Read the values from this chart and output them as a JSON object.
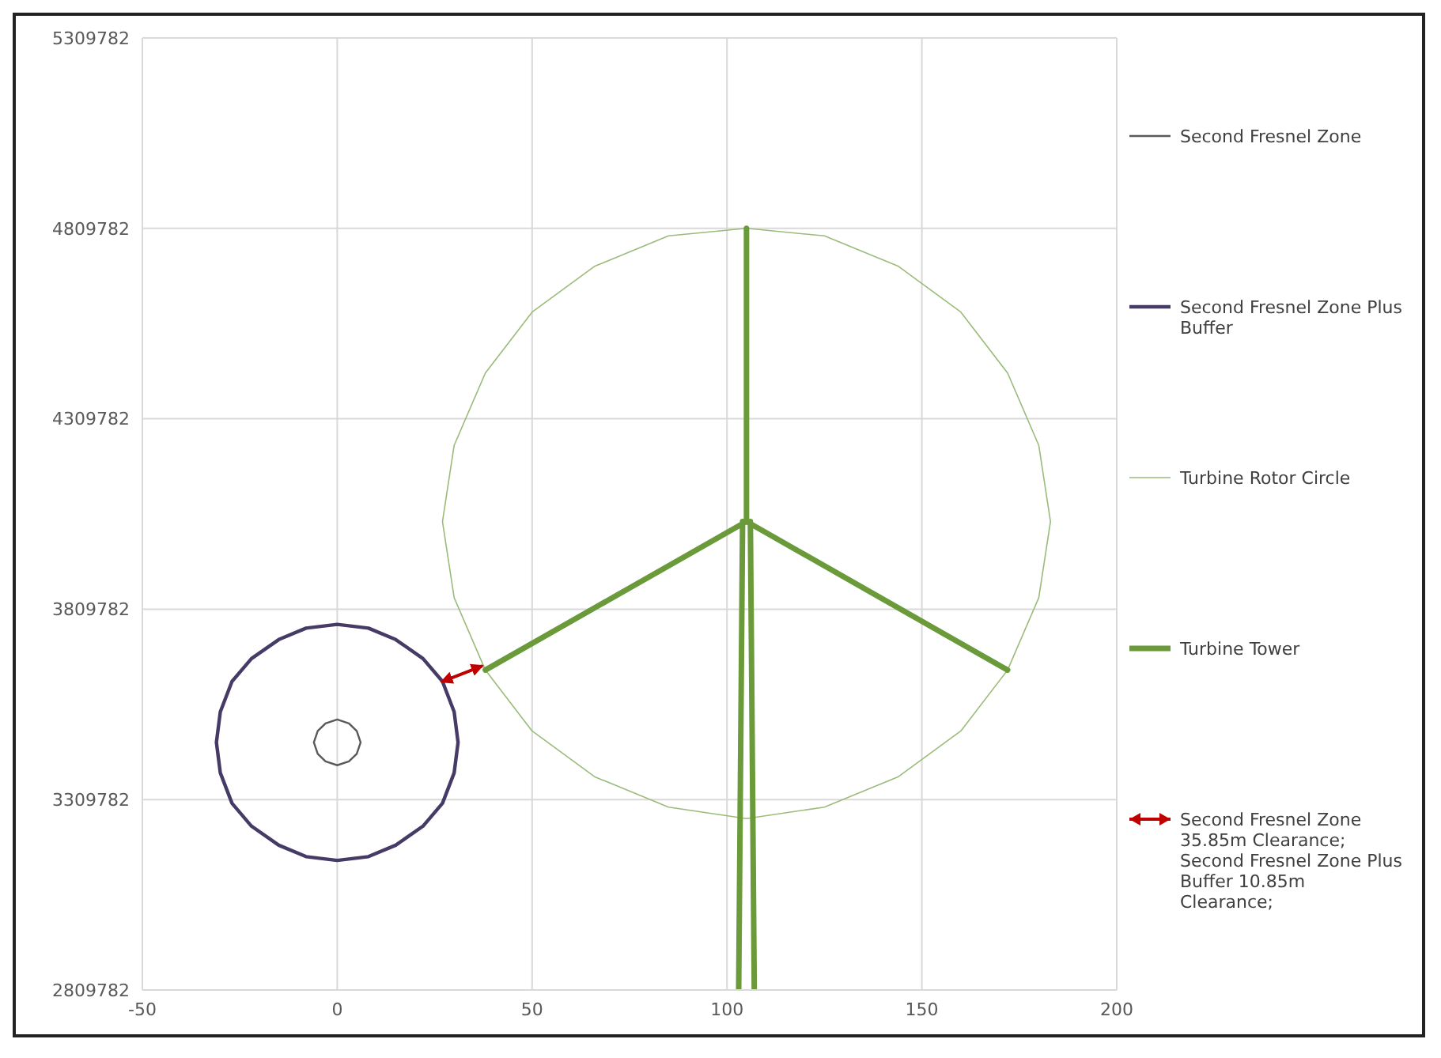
{
  "chart_data": {
    "type": "line",
    "xlim": [
      -50,
      200
    ],
    "xticks": [
      -50,
      0,
      50,
      100,
      150,
      200
    ],
    "ylim": [
      2809782,
      5309782
    ],
    "yticks": [
      2809782,
      3309782,
      3809782,
      4309782,
      4809782,
      5309782
    ],
    "grid": true,
    "legend": "right",
    "marker": "none",
    "line_style": "solid",
    "series": [
      {
        "name": "Second Fresnel Zone",
        "color": "#595959",
        "x": [
          -6,
          -5,
          -3,
          0,
          3,
          5,
          6,
          null,
          -6,
          -5,
          -3,
          0,
          3,
          5,
          6
        ],
        "values": [
          3460000,
          3490000,
          3510000,
          3520000,
          3510000,
          3490000,
          3460000,
          null,
          3460000,
          3430000,
          3410000,
          3400000,
          3410000,
          3430000,
          3460000
        ]
      },
      {
        "name": "Second Fresnel Zone Plus Buffer",
        "color": "#463a66",
        "x": [
          -31,
          -30,
          -27,
          -22,
          -15,
          -8,
          0,
          8,
          15,
          22,
          27,
          30,
          31,
          null,
          -31,
          -30,
          -27,
          -22,
          -15,
          -8,
          0,
          8,
          15,
          22,
          27,
          30,
          31
        ],
        "values": [
          3460000,
          3540000,
          3620000,
          3680000,
          3730000,
          3760000,
          3770000,
          3760000,
          3730000,
          3680000,
          3620000,
          3540000,
          3460000,
          null,
          3460000,
          3380000,
          3300000,
          3240000,
          3190000,
          3160000,
          3150000,
          3160000,
          3190000,
          3240000,
          3300000,
          3380000,
          3460000
        ]
      },
      {
        "name": "Turbine Rotor Circle",
        "color": "#9bbb7a",
        "x": [
          27,
          30,
          38,
          50,
          66,
          85,
          105,
          125,
          144,
          160,
          172,
          180,
          183,
          null,
          27,
          30,
          38,
          50,
          66,
          85,
          105,
          125,
          144,
          160,
          172,
          180,
          183
        ],
        "values": [
          4040000,
          4240000,
          4430000,
          4590000,
          4710000,
          4790000,
          4810000,
          4790000,
          4710000,
          4590000,
          4430000,
          4240000,
          4040000,
          null,
          4040000,
          3840000,
          3650000,
          3490000,
          3370000,
          3290000,
          3260000,
          3290000,
          3370000,
          3490000,
          3650000,
          3840000,
          4040000
        ]
      },
      {
        "name": "Turbine Tower",
        "color": "#6a9a3a",
        "x": [
          105,
          105,
          null,
          105,
          38,
          null,
          105,
          172,
          null,
          104,
          103,
          null,
          106,
          107
        ],
        "values": [
          4040000,
          4810000,
          null,
          4040000,
          3650000,
          null,
          4040000,
          3650000,
          null,
          4040000,
          2810000,
          null,
          4040000,
          2810000
        ]
      },
      {
        "name": "Second Fresnel Zone 35.85m Clearance; Second Fresnel Zone Plus Buffer 10.85m Clearance;",
        "color": "#c00000",
        "x": [
          27,
          37
        ],
        "values": [
          3620000,
          3660000
        ]
      }
    ]
  }
}
